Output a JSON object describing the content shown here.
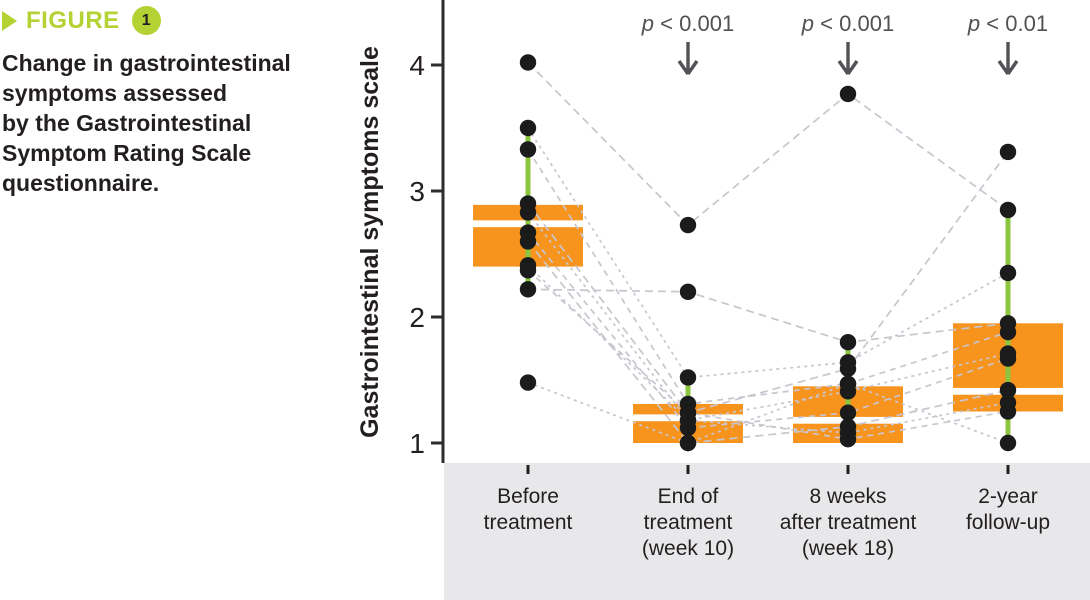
{
  "figure": {
    "label": "FIGURE",
    "number": "1",
    "caption": "Change in gastrointestinal\nsymptoms assessed\nby the Gastrointestinal\nSymptom Rating Scale\nquestionnaire.",
    "accent_color": "#b4d233",
    "text_color": "#231f20"
  },
  "chart_data": {
    "type": "boxplot-with-points",
    "title": "",
    "xlabel": "",
    "ylabel": "Gastrointestinal symptoms scale",
    "ylim": [
      0.95,
      4.5
    ],
    "yticks": [
      1,
      2,
      3,
      4
    ],
    "grid": false,
    "legend": "none",
    "categories": [
      "Before\ntreatment",
      "End of\ntreatment\n(week 10)",
      "8 weeks\nafter treatment\n(week 18)",
      "2-year\nfollow-up"
    ],
    "boxes": [
      {
        "category": "Before treatment",
        "q1": 2.4,
        "median": 2.74,
        "q3": 2.89,
        "whisker_low": 2.22,
        "whisker_high": 3.51
      },
      {
        "category": "End of treatment (week 10)",
        "q1": 1.0,
        "median": 1.2,
        "q3": 1.31,
        "whisker_low": 1.0,
        "whisker_high": 1.52
      },
      {
        "category": "8 weeks after treatment (week 18)",
        "q1": 1.0,
        "median": 1.18,
        "q3": 1.45,
        "whisker_low": 1.0,
        "whisker_high": 1.8
      },
      {
        "category": "2-year follow-up",
        "q1": 1.25,
        "median": 1.41,
        "q3": 1.95,
        "whisker_low": 1.0,
        "whisker_high": 2.85
      }
    ],
    "subjects": [
      [
        4.02,
        2.73,
        3.77,
        2.85
      ],
      [
        3.5,
        1.52,
        1.64,
        2.35
      ],
      [
        3.33,
        1.31,
        1.47,
        1.88
      ],
      [
        2.9,
        1.24,
        1.59,
        3.31
      ],
      [
        2.83,
        1.18,
        1.41,
        1.71
      ],
      [
        2.67,
        1.12,
        1.24,
        1.67
      ],
      [
        2.6,
        1.0,
        1.13,
        1.42
      ],
      [
        2.41,
        1.18,
        1.08,
        1.32
      ],
      [
        2.37,
        1.24,
        1.03,
        1.25
      ],
      [
        2.22,
        2.2,
        1.8,
        1.95
      ],
      [
        1.48,
        1.0,
        1.47,
        1.0
      ]
    ],
    "annotations": [
      {
        "group_index": 1,
        "prefix": "p",
        "text": " < 0.001"
      },
      {
        "group_index": 2,
        "prefix": "p",
        "text": " < 0.001"
      },
      {
        "group_index": 3,
        "prefix": "p",
        "text": " < 0.01"
      }
    ],
    "colors": {
      "box_fill": "#f7941e",
      "median_line": "#ffffff",
      "whisker": "#8cc63f",
      "point": "#1b1b1b",
      "subject_line": "#c9c5ce",
      "axis": "#2e2d2c",
      "tick_label": "#231f20",
      "annotation": "#525256",
      "label_band": "#e8e7e9"
    }
  }
}
